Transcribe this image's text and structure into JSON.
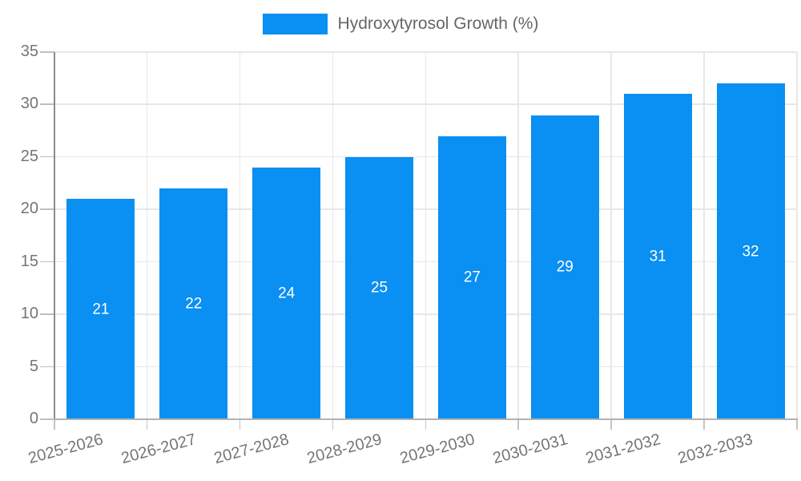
{
  "legend": {
    "label": "Hydroxytyrosol Growth (%)"
  },
  "chart_data": {
    "type": "bar",
    "title": "",
    "categories": [
      "2025-2026",
      "2026-2027",
      "2027-2028",
      "2028-2029",
      "2029-2030",
      "2030-2031",
      "2031-2032",
      "2032-2033"
    ],
    "series": [
      {
        "name": "Hydroxytyrosol Growth (%)",
        "values": [
          21,
          22,
          24,
          25,
          27,
          29,
          31,
          32
        ]
      }
    ],
    "xlabel": "",
    "ylabel": "",
    "ylim": [
      0,
      35
    ],
    "yticks": [
      0,
      5,
      10,
      15,
      20,
      25,
      30,
      35
    ],
    "grid": true,
    "legend_position": "top-center",
    "value_label_position": "inside-center",
    "x_label_rotation_deg": -15,
    "colors": {
      "bar": "#0a8ff2",
      "grid": "#e7e7e7",
      "y_axis": "#8c8c8c",
      "x_axis": "#b3b3b3",
      "tick": "#c4c4c4",
      "tick_label": "#757575",
      "legend_text": "#666666",
      "value_label": "#ffffff",
      "background": "#ffffff"
    }
  }
}
